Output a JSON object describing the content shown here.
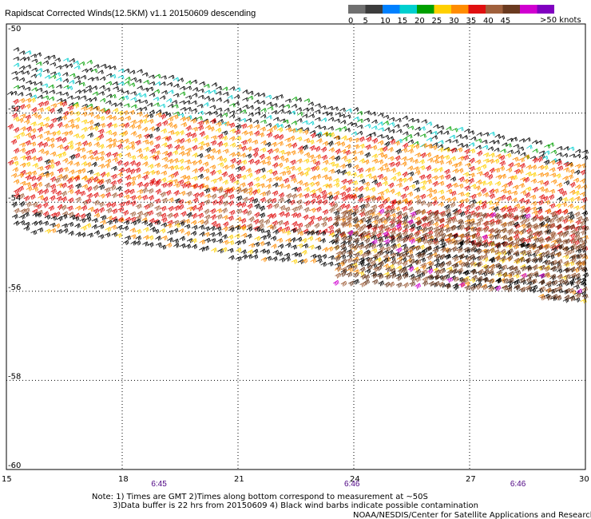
{
  "title": "Rapidscat Corrected Winds(12.5KM) v1.1 20150609 descending",
  "colorbar": {
    "unit_label": ">50 knots",
    "bins": [
      {
        "label": "0",
        "color": "#707070"
      },
      {
        "label": "5",
        "color": "#3c3c3c"
      },
      {
        "label": "10",
        "color": "#0080ff"
      },
      {
        "label": "15",
        "color": "#00cfcf"
      },
      {
        "label": "20",
        "color": "#00a000"
      },
      {
        "label": "25",
        "color": "#ffd000"
      },
      {
        "label": "30",
        "color": "#ff8c00"
      },
      {
        "label": "35",
        "color": "#e01010"
      },
      {
        "label": "40",
        "color": "#a0603c"
      },
      {
        "label": "45",
        "color": "#6a3a20"
      },
      {
        "label": "",
        "color": "#d000d0"
      },
      {
        "label": "",
        "color": "#8000c0"
      }
    ]
  },
  "chart_data": {
    "type": "scatter",
    "title": "Rapidscat Corrected Winds(12.5KM) v1.1 20150609 descending",
    "x_ticks": [
      "15",
      "18",
      "21",
      "24",
      "27",
      "30"
    ],
    "y_ticks": [
      "-50",
      "-52",
      "-54",
      "-56",
      "-58",
      "-60"
    ],
    "xlim": [
      15,
      30
    ],
    "ylim": [
      -60,
      -50
    ],
    "grid": true,
    "time_labels": [
      {
        "x": 19,
        "label": "6:45"
      },
      {
        "x": 24,
        "label": "6:46"
      },
      {
        "x": 28.3,
        "label": "6:46"
      }
    ],
    "swath_bands": [
      {
        "x": [
          15,
          30
        ],
        "lat_start": [
          -50.6,
          -52.9
        ],
        "lat_end": [
          -51.7,
          -53.2
        ],
        "speed": 20,
        "contaminated": true
      },
      {
        "x": [
          15,
          30
        ],
        "lat_start": [
          -51.7,
          -53.2
        ],
        "lat_end": [
          -53.4,
          -54.3
        ],
        "speed": 33
      },
      {
        "x": [
          15,
          30
        ],
        "lat_start": [
          -53.4,
          -54.3
        ],
        "lat_end": [
          -54.3,
          -55.1
        ],
        "speed": 38
      },
      {
        "x": [
          15,
          30
        ],
        "lat_start": [
          -54.3,
          -55.1
        ],
        "lat_end": [
          -54.6,
          -56.3
        ],
        "speed": 30,
        "contaminated": true
      },
      {
        "x": [
          23.5,
          30
        ],
        "lat_start": [
          -54.2,
          -54.4
        ],
        "lat_end": [
          -55.8,
          -56.2
        ],
        "speed": 46
      }
    ]
  },
  "notes": {
    "line1": "Note: 1) Times are GMT 2)Times along bottom correspond to measurement at ~50S",
    "line2": "3)Data buffer is 22 hrs from 20150609 4) Black wind barbs indicate possible contamination",
    "credit": "NOAA/NESDIS/Center for Satellite Applications and Research"
  }
}
